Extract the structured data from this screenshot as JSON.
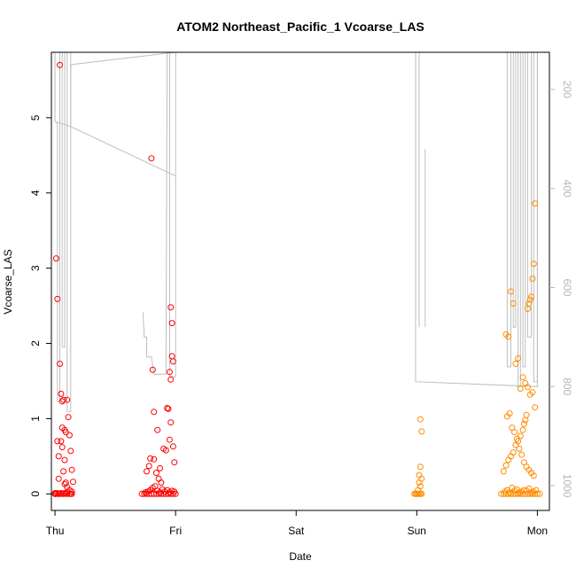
{
  "chart_data": {
    "type": "scatter",
    "title": "ATOM2 Northeast_Pacific_1 Vcoarse_LAS",
    "xlabel": "Date",
    "ylabel": "Vcoarse_LAS",
    "xlim": [
      -0.03,
      4.1
    ],
    "ylim": [
      -0.22,
      5.87
    ],
    "x_ticks": [
      0,
      1,
      2,
      3,
      4
    ],
    "x_tick_labels": [
      "Thu",
      "Fri",
      "Sat",
      "Sun",
      "Mon"
    ],
    "y_ticks": [
      0,
      1,
      2,
      3,
      4,
      5
    ],
    "y_tick_labels": [
      "0",
      "1",
      "2",
      "3",
      "4",
      "5"
    ],
    "y2_ticks": [
      200,
      400,
      600,
      800,
      1000
    ],
    "y2_tick_labels": [
      "200",
      "400",
      "600",
      "800",
      "1000"
    ],
    "y2lim": [
      1050,
      125
    ],
    "grid": false,
    "colors": {
      "red_series": "#ff0000",
      "orange_series": "#ff8c00",
      "pressure_line": "#bebebe",
      "axes": "#000000"
    },
    "series": [
      {
        "color": "red",
        "marker": "open-circle",
        "x": [
          0.0,
          0.0,
          0.0,
          0.0,
          0.01,
          0.02,
          0.03,
          0.03,
          0.04,
          0.05,
          0.06,
          0.07,
          0.08,
          0.09,
          0.1,
          0.12,
          0.13,
          0.14,
          0.01,
          0.02,
          0.04,
          0.05,
          0.06,
          0.07,
          0.08,
          0.09,
          0.1,
          0.11,
          0.12,
          0.13,
          0.14,
          0.15,
          0.04,
          0.05,
          0.03,
          0.06,
          0.07,
          0.08,
          0.02,
          0.09,
          0.1,
          0.12,
          0.14,
          0.03,
          0.06,
          0.08,
          0.1,
          0.72,
          0.74,
          0.76,
          0.78,
          0.8,
          0.82,
          0.84,
          0.86,
          0.88,
          0.9,
          0.92,
          0.94,
          0.96,
          0.98,
          1.0,
          0.75,
          0.77,
          0.79,
          0.81,
          0.83,
          0.85,
          0.87,
          0.89,
          0.91,
          0.93,
          0.95,
          0.97,
          0.99,
          0.8,
          0.81,
          0.79,
          0.82,
          0.85,
          0.87,
          0.93,
          0.94,
          0.96,
          0.97,
          0.95,
          0.96,
          0.98,
          0.97,
          0.96,
          0.95,
          0.98,
          0.99,
          0.82,
          0.84,
          0.86,
          0.88,
          0.9,
          0.78,
          0.76,
          0.92
        ],
        "y": [
          0.0,
          0.01,
          0.0,
          0.0,
          0.0,
          0.01,
          0.0,
          0.0,
          0.0,
          0.01,
          0.0,
          0.0,
          0.01,
          0.0,
          0.0,
          0.0,
          0.0,
          0.0,
          3.13,
          2.59,
          1.73,
          1.33,
          1.23,
          1.25,
          0.85,
          0.82,
          1.25,
          1.02,
          0.78,
          0.57,
          0.32,
          0.16,
          5.7,
          0.7,
          0.5,
          0.88,
          0.3,
          0.13,
          0.7,
          0.15,
          0.09,
          0.05,
          0.03,
          0.2,
          0.62,
          0.45,
          0.02,
          0.0,
          0.0,
          0.0,
          0.0,
          0.0,
          0.0,
          0.0,
          0.0,
          0.0,
          0.0,
          0.0,
          0.0,
          0.0,
          0.0,
          0.0,
          0.02,
          0.03,
          0.05,
          0.08,
          0.1,
          0.04,
          0.02,
          0.06,
          0.03,
          0.05,
          0.02,
          0.04,
          0.03,
          4.46,
          1.65,
          0.47,
          0.46,
          0.85,
          0.34,
          1.14,
          1.13,
          2.48,
          2.27,
          1.62,
          1.52,
          1.76,
          1.83,
          0.95,
          0.72,
          0.63,
          0.42,
          1.09,
          0.28,
          0.2,
          0.15,
          0.6,
          0.37,
          0.3,
          0.58
        ]
      },
      {
        "color": "orange",
        "marker": "open-circle",
        "x": [
          2.98,
          2.99,
          3.0,
          3.01,
          3.02,
          3.03,
          3.04,
          3.03,
          3.04,
          3.03,
          3.02,
          3.04,
          3.03,
          3.01,
          3.02,
          3.7,
          3.72,
          3.74,
          3.76,
          3.78,
          3.8,
          3.82,
          3.84,
          3.86,
          3.88,
          3.9,
          3.92,
          3.94,
          3.96,
          3.98,
          4.0,
          4.02,
          3.73,
          3.75,
          3.77,
          3.79,
          3.81,
          3.83,
          3.85,
          3.87,
          3.89,
          3.91,
          3.93,
          3.95,
          3.97,
          3.99,
          3.74,
          3.76,
          3.78,
          3.8,
          3.82,
          3.84,
          3.86,
          3.88,
          3.9,
          3.92,
          3.94,
          3.96,
          3.98,
          3.75,
          3.77,
          3.79,
          3.81,
          3.83,
          3.85,
          3.87,
          3.89,
          3.91,
          3.93,
          3.95,
          3.97,
          3.98,
          3.97,
          3.96,
          3.95,
          3.94,
          3.93,
          3.92,
          3.91,
          3.9,
          3.89,
          3.88,
          3.86,
          3.84,
          3.82,
          3.8,
          3.78,
          3.76,
          3.74,
          3.72
        ],
        "y": [
          0.0,
          0.0,
          0.0,
          0.0,
          0.0,
          0.0,
          0.0,
          0.99,
          0.83,
          0.36,
          0.25,
          0.2,
          0.1,
          0.05,
          0.15,
          0.0,
          0.0,
          0.0,
          0.0,
          0.0,
          0.0,
          0.0,
          0.0,
          0.0,
          0.0,
          0.0,
          0.0,
          0.0,
          0.0,
          0.0,
          0.0,
          0.0,
          0.03,
          0.05,
          0.02,
          0.08,
          0.04,
          0.06,
          0.02,
          0.03,
          0.05,
          0.04,
          0.07,
          0.02,
          0.03,
          0.05,
          2.12,
          2.09,
          2.69,
          2.53,
          1.73,
          1.8,
          1.4,
          1.55,
          1.47,
          1.42,
          1.32,
          1.35,
          1.15,
          1.03,
          1.07,
          0.88,
          0.82,
          0.73,
          0.6,
          0.52,
          0.42,
          0.36,
          0.32,
          0.28,
          0.24,
          3.86,
          3.06,
          2.86,
          2.62,
          2.58,
          2.53,
          2.46,
          1.05,
          0.98,
          0.93,
          0.85,
          0.77,
          0.7,
          0.65,
          0.55,
          0.5,
          0.45,
          0.38,
          0.3
        ]
      }
    ],
    "pressure_line": {
      "axis": "right",
      "segments": [
        [
          [
            0.0,
            125
          ],
          [
            0.0,
            265
          ],
          [
            0.02,
            268
          ],
          [
            0.02,
            830
          ],
          [
            0.04,
            830
          ],
          [
            0.04,
            125
          ]
        ],
        [
          [
            0.04,
            125
          ],
          [
            0.06,
            125
          ],
          [
            0.06,
            720
          ],
          [
            0.08,
            720
          ],
          [
            0.08,
            125
          ],
          [
            0.1,
            125
          ],
          [
            0.1,
            850
          ],
          [
            0.13,
            850
          ],
          [
            0.13,
            125
          ]
        ],
        [
          [
            0.0,
            265
          ],
          [
            0.13,
            275
          ],
          [
            0.13,
            150
          ],
          [
            1.0,
            125
          ]
        ],
        [
          [
            0.13,
            275
          ],
          [
            1.0,
            375
          ]
        ],
        [
          [
            0.73,
            650
          ],
          [
            0.74,
            700
          ],
          [
            0.74,
            700
          ],
          [
            0.76,
            700
          ],
          [
            0.76,
            740
          ],
          [
            0.8,
            740
          ],
          [
            0.82,
            775
          ],
          [
            0.92,
            775
          ],
          [
            0.93,
            125
          ],
          [
            0.95,
            125
          ],
          [
            0.95,
            780
          ],
          [
            1.0,
            780
          ],
          [
            1.0,
            125
          ]
        ],
        [
          [
            1.0,
            125
          ],
          [
            3.0,
            125
          ]
        ],
        [
          [
            2.99,
            125
          ],
          [
            2.99,
            790
          ],
          [
            4.0,
            800
          ],
          [
            4.0,
            125
          ]
        ],
        [
          [
            3.02,
            125
          ],
          [
            3.02,
            680
          ]
        ],
        [
          [
            3.07,
            320
          ],
          [
            3.07,
            680
          ]
        ],
        [
          [
            3.75,
            125
          ],
          [
            3.75,
            760
          ],
          [
            3.78,
            760
          ],
          [
            3.78,
            125
          ]
        ],
        [
          [
            3.8,
            125
          ],
          [
            3.8,
            680
          ],
          [
            3.82,
            680
          ],
          [
            3.82,
            125
          ]
        ],
        [
          [
            3.84,
            125
          ],
          [
            3.84,
            800
          ],
          [
            3.86,
            800
          ],
          [
            3.86,
            125
          ]
        ],
        [
          [
            3.88,
            125
          ],
          [
            3.88,
            760
          ],
          [
            3.9,
            760
          ],
          [
            3.9,
            125
          ]
        ],
        [
          [
            3.92,
            125
          ],
          [
            3.92,
            700
          ],
          [
            3.95,
            700
          ],
          [
            3.95,
            125
          ]
        ],
        [
          [
            3.97,
            125
          ],
          [
            3.97,
            790
          ],
          [
            4.0,
            790
          ],
          [
            4.0,
            125
          ]
        ]
      ]
    }
  }
}
